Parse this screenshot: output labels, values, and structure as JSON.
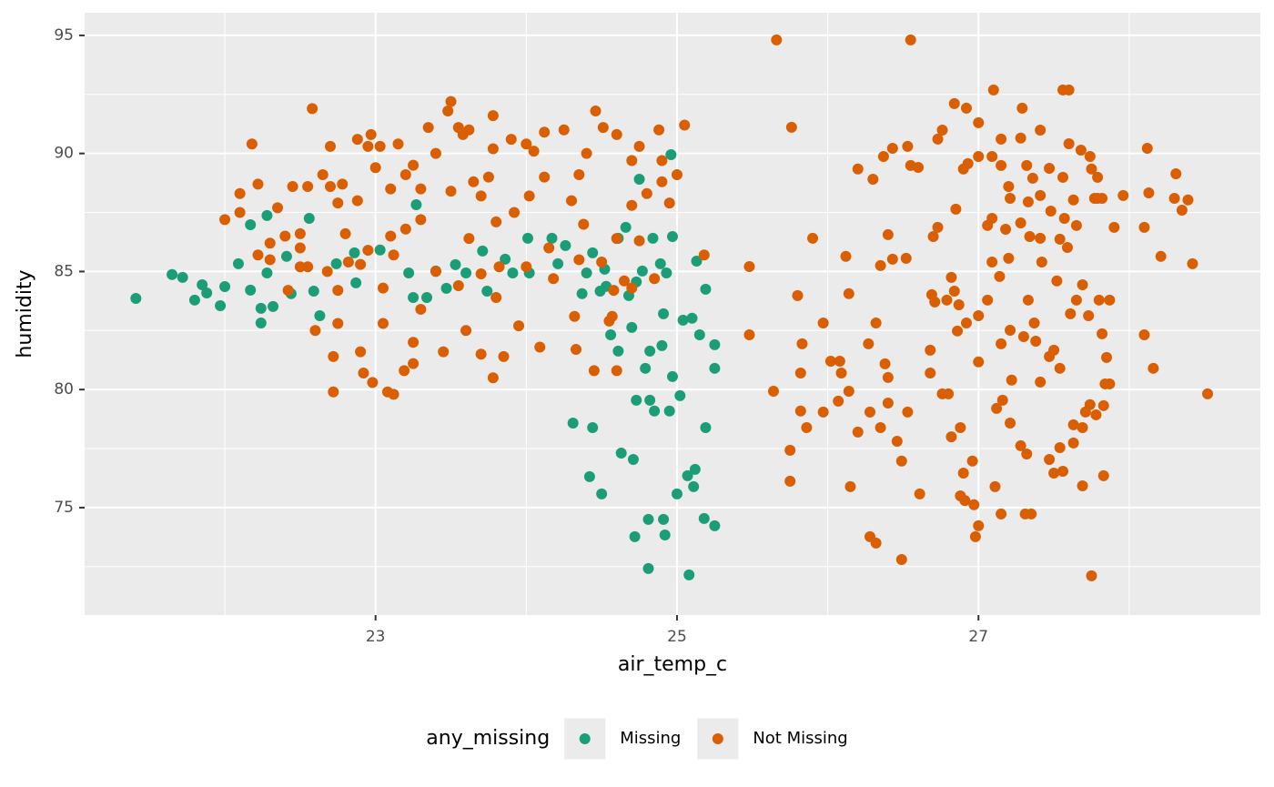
{
  "chart_data": {
    "type": "scatter",
    "x_label": "air_temp_c",
    "y_label": "humidity",
    "xlim": [
      21.07,
      28.87
    ],
    "ylim": [
      70.45,
      95.96
    ],
    "xticks": [
      23,
      25,
      27
    ],
    "yticks": [
      75,
      80,
      85,
      90,
      95
    ],
    "x_minor_grid": [
      22,
      24,
      26,
      28
    ],
    "y_minor_grid": [
      72.5,
      77.5,
      82.5,
      87.5,
      92.5
    ],
    "grid": true,
    "legend_title": "any_missing",
    "legend_position": "bottom",
    "series": [
      {
        "name": "Missing",
        "color": "#1b9e77",
        "x": [
          21.41,
          21.65,
          21.72,
          21.8,
          21.85,
          21.88,
          21.97,
          22.0,
          22.09,
          22.17,
          22.17,
          22.24,
          22.24,
          22.28,
          22.28,
          22.32,
          22.41,
          22.44,
          22.56,
          22.59,
          22.63,
          22.74,
          22.86,
          22.87,
          23.03,
          23.22,
          23.25,
          23.27,
          23.34,
          23.4,
          23.47,
          23.53,
          23.6,
          23.71,
          23.74,
          23.86,
          23.91,
          24.01,
          24.02,
          24.17,
          24.21,
          24.26,
          24.31,
          24.37,
          24.4,
          24.42,
          24.44,
          24.44,
          24.49,
          24.5,
          24.52,
          24.56,
          24.61,
          24.63,
          24.61,
          24.66,
          24.68,
          24.7,
          24.71,
          24.72,
          24.73,
          24.75,
          24.77,
          24.79,
          24.81,
          24.82,
          24.82,
          24.84,
          24.85,
          24.89,
          24.9,
          24.91,
          24.92,
          24.95,
          24.96,
          24.97,
          24.97,
          25.0,
          25.02,
          25.04,
          25.07,
          25.08,
          25.1,
          25.11,
          25.12,
          25.13,
          25.15,
          25.18,
          25.19,
          25.19,
          25.25,
          25.25,
          25.25,
          24.81,
          24.91,
          24.93,
          24.73,
          24.53
        ],
        "values": [
          83.86,
          84.87,
          84.75,
          83.79,
          84.44,
          84.09,
          83.55,
          84.36,
          85.33,
          86.98,
          84.21,
          83.44,
          82.82,
          87.37,
          84.94,
          83.52,
          85.64,
          84.06,
          87.25,
          84.17,
          83.13,
          85.33,
          85.79,
          84.52,
          85.91,
          84.94,
          83.9,
          87.83,
          83.9,
          85.02,
          84.29,
          85.29,
          84.94,
          85.87,
          84.17,
          85.52,
          84.94,
          86.41,
          84.94,
          86.41,
          85.33,
          86.1,
          78.58,
          84.06,
          84.94,
          76.31,
          85.79,
          78.39,
          84.17,
          75.58,
          85.1,
          82.32,
          81.63,
          77.31,
          86.41,
          86.87,
          83.98,
          82.63,
          77.04,
          73.77,
          79.55,
          88.91,
          85.02,
          80.9,
          74.5,
          79.55,
          81.63,
          86.41,
          79.09,
          85.33,
          81.86,
          74.5,
          73.84,
          79.09,
          89.95,
          86.48,
          80.55,
          75.58,
          79.74,
          82.94,
          76.35,
          72.15,
          83.02,
          75.89,
          76.62,
          85.44,
          82.32,
          74.54,
          78.39,
          84.25,
          74.23,
          80.9,
          81.9,
          72.42,
          83.21,
          84.94,
          84.56,
          84.37
        ]
      },
      {
        "name": "Not Missing",
        "color": "#d95f02",
        "x": [
          22.0,
          22.1,
          22.1,
          22.18,
          22.22,
          22.22,
          22.3,
          22.3,
          22.35,
          22.4,
          22.42,
          22.45,
          22.5,
          22.5,
          22.55,
          22.55,
          22.6,
          22.65,
          22.68,
          22.7,
          22.72,
          22.75,
          22.78,
          22.8,
          22.82,
          22.58,
          22.88,
          22.9,
          22.95,
          22.95,
          23.0,
          23.05,
          23.05,
          23.08,
          23.1,
          23.12,
          23.12,
          23.2,
          23.25,
          23.3,
          23.3,
          23.35,
          23.4,
          23.45,
          23.19,
          23.5,
          23.55,
          23.58,
          22.98,
          23.62,
          23.65,
          23.7,
          23.7,
          23.75,
          23.78,
          23.8,
          23.82,
          23.85,
          23.78,
          23.92,
          23.95,
          24.0,
          24.02,
          24.05,
          24.09,
          24.12,
          24.15,
          24.18,
          24.33,
          24.32,
          24.3,
          24.35,
          24.38,
          24.4,
          24.45,
          24.5,
          24.55,
          24.58,
          24.6,
          24.65,
          24.7,
          24.75,
          24.8,
          24.85,
          24.9,
          24.95,
          25.0,
          25.05,
          25.18,
          23.5,
          23.48,
          23.55,
          23.62,
          23.78,
          23.4,
          23.15,
          23.2,
          23.03,
          22.97,
          22.88,
          22.7,
          23.25,
          24.12,
          24.25,
          24.46,
          24.51,
          24.6,
          24.88,
          24.75,
          23.9,
          24.0,
          23.3,
          23.7,
          23.1,
          22.5,
          24.35,
          24.7,
          24.9,
          23.8,
          22.75,
          22.9,
          23.25,
          23.6,
          22.92,
          22.72,
          24.6,
          24.7,
          24.57,
          22.75,
          26.2,
          26.3,
          26.37,
          26.43,
          26.53,
          26.55,
          26.6,
          26.73,
          26.76,
          26.84,
          26.92,
          26.9,
          27.0,
          27.1,
          27.15,
          27.28,
          27.29,
          27.41,
          27.56,
          27.6,
          27.6,
          27.68,
          27.74,
          27.75,
          27.79,
          27.82,
          27.79,
          27.9,
          27.96,
          28.1,
          28.13,
          28.1,
          28.16,
          28.21,
          28.12,
          28.3,
          28.31,
          28.39,
          28.35,
          28.42,
          28.52,
          27.84,
          27.87,
          27.83,
          27.75,
          27.69,
          27.69,
          27.63,
          27.56,
          27.54,
          27.5,
          27.52,
          27.47,
          27.41,
          27.35,
          27.31,
          27.32,
          27.28,
          27.21,
          27.15,
          27.11,
          26.98,
          27.0,
          26.97,
          26.96,
          26.88,
          26.88,
          26.82,
          26.76,
          26.68,
          26.68,
          26.71,
          26.69,
          26.82,
          26.86,
          27.0,
          27.06,
          27.14,
          27.15,
          27.21,
          27.33,
          27.37,
          27.41,
          27.48,
          27.54,
          27.59,
          27.65,
          27.69,
          27.73,
          27.82,
          27.87,
          27.8,
          27.65,
          27.61,
          27.06,
          27.18,
          27.28,
          27.33,
          27.09,
          26.85,
          26.93,
          27.0,
          27.09,
          27.15,
          27.2,
          27.21,
          27.32,
          27.36,
          27.41,
          27.47,
          27.56,
          26.7,
          26.73,
          26.52,
          26.43,
          26.35,
          26.4,
          26.32,
          26.27,
          26.12,
          26.14,
          26.08,
          26.02,
          26.09,
          26.14,
          26.07,
          25.97,
          25.86,
          25.82,
          25.75,
          25.75,
          25.64,
          25.83,
          25.82,
          25.8,
          25.76,
          25.66,
          26.55,
          25.9,
          25.97,
          25.48,
          25.48,
          26.15,
          26.2,
          26.28,
          26.35,
          26.4,
          26.4,
          26.38,
          26.46,
          26.49,
          26.53,
          26.28,
          26.32,
          26.49,
          26.61,
          26.8,
          26.9,
          26.91,
          26.79,
          26.84,
          26.87,
          26.92,
          27.0,
          27.12,
          27.16,
          27.22,
          27.3,
          27.38,
          27.47,
          27.5,
          27.54,
          27.63,
          27.71,
          27.74,
          27.78,
          27.83,
          27.85,
          27.57,
          27.77,
          27.63,
          27.34,
          27.09,
          27.42,
          27.2
        ],
        "values": [
          87.2,
          88.3,
          87.5,
          90.4,
          88.7,
          85.7,
          86.2,
          85.5,
          87.7,
          86.5,
          84.2,
          88.6,
          85.2,
          86.0,
          85.2,
          88.6,
          82.5,
          89.1,
          85.0,
          88.6,
          81.4,
          87.9,
          88.7,
          86.6,
          85.4,
          91.9,
          88.0,
          85.3,
          90.3,
          85.9,
          89.4,
          82.8,
          84.3,
          79.9,
          86.5,
          79.8,
          85.7,
          86.8,
          81.1,
          87.2,
          83.4,
          91.1,
          85.0,
          81.6,
          80.8,
          88.4,
          84.4,
          90.8,
          80.3,
          86.4,
          88.8,
          84.9,
          81.5,
          89.0,
          90.2,
          87.1,
          85.2,
          81.4,
          80.5,
          87.5,
          82.7,
          85.2,
          88.2,
          90.1,
          81.8,
          89.0,
          86.0,
          84.7,
          81.7,
          83.1,
          88.0,
          85.5,
          87.0,
          90.0,
          80.8,
          85.4,
          82.9,
          84.2,
          86.4,
          84.6,
          87.8,
          86.3,
          88.3,
          84.7,
          88.8,
          87.9,
          89.1,
          91.2,
          85.7,
          92.2,
          91.8,
          91.1,
          91.0,
          91.6,
          90.0,
          90.4,
          89.1,
          90.3,
          90.8,
          90.6,
          90.3,
          89.5,
          90.9,
          91.0,
          91.8,
          91.1,
          90.8,
          91.0,
          90.3,
          90.6,
          90.4,
          88.5,
          88.2,
          88.5,
          86.6,
          89.1,
          89.7,
          89.7,
          83.9,
          82.8,
          81.6,
          82.0,
          82.5,
          80.7,
          79.9,
          80.8,
          84.3,
          83.1,
          84.2,
          89.34,
          88.91,
          89.87,
          90.22,
          90.3,
          89.49,
          89.41,
          90.61,
          90.99,
          92.11,
          91.92,
          89.34,
          91.3,
          92.69,
          90.61,
          90.65,
          91.92,
          90.99,
          92.69,
          92.69,
          90.41,
          90.14,
          89.87,
          89.34,
          88.99,
          88.1,
          88.1,
          86.87,
          88.22,
          86.87,
          88.33,
          82.32,
          80.9,
          85.64,
          90.22,
          88.1,
          89.14,
          88.03,
          87.6,
          85.33,
          79.82,
          80.24,
          80.24,
          76.35,
          72.11,
          75.92,
          78.39,
          77.74,
          76.54,
          80.9,
          81.67,
          84.6,
          81.4,
          80.32,
          74.73,
          74.73,
          77.27,
          77.62,
          78.58,
          74.73,
          75.89,
          73.77,
          74.23,
          75.12,
          76.97,
          75.5,
          78.39,
          78.0,
          79.82,
          80.7,
          81.67,
          83.71,
          84.02,
          84.75,
          82.48,
          83.13,
          83.79,
          84.79,
          81.94,
          82.51,
          83.79,
          82.82,
          86.41,
          87.56,
          86.37,
          86.02,
          86.95,
          84.44,
          83.13,
          82.36,
          83.79,
          83.79,
          83.79,
          83.21,
          86.95,
          86.79,
          87.06,
          87.95,
          87.25,
          87.64,
          89.57,
          89.87,
          89.87,
          89.49,
          88.6,
          88.1,
          89.49,
          88.95,
          88.22,
          89.37,
          88.99,
          86.48,
          86.87,
          85.56,
          85.52,
          85.25,
          86.56,
          82.82,
          81.94,
          85.64,
          84.06,
          81.2,
          81.2,
          80.7,
          79.93,
          79.51,
          79.05,
          78.39,
          79.09,
          76.12,
          77.43,
          79.93,
          81.94,
          80.7,
          83.98,
          91.11,
          94.81,
          94.81,
          86.41,
          82.82,
          82.32,
          85.21,
          75.89,
          78.2,
          79.05,
          78.39,
          79.43,
          80.51,
          81.09,
          77.81,
          76.97,
          79.05,
          73.77,
          73.5,
          72.8,
          75.58,
          79.82,
          76.46,
          75.3,
          83.79,
          84.17,
          83.59,
          82.82,
          81.17,
          79.2,
          79.55,
          80.4,
          82.24,
          82.05,
          77.04,
          76.46,
          77.54,
          78.51,
          79.05,
          79.36,
          78.93,
          79.32,
          81.36,
          87.25,
          88.1,
          88.03,
          86.48,
          85.4,
          85.4,
          85.56
        ]
      }
    ]
  }
}
